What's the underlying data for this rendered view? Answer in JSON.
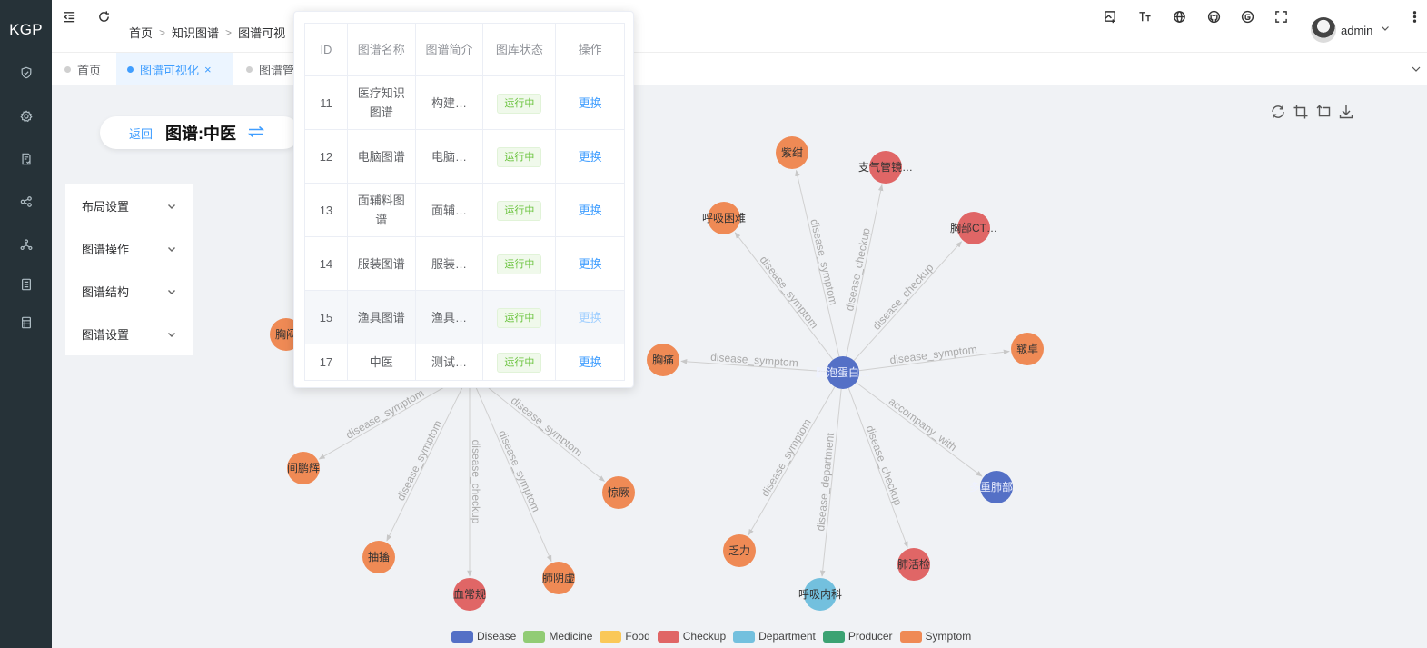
{
  "sidebar": {
    "logo": "KGP",
    "items": [
      {
        "icon": "shield-icon"
      },
      {
        "icon": "gear-icon"
      },
      {
        "icon": "document-check-icon"
      },
      {
        "icon": "share-nodes-icon"
      },
      {
        "icon": "graph-network-icon"
      },
      {
        "icon": "file-list-icon"
      },
      {
        "icon": "table-icon"
      }
    ]
  },
  "header": {
    "breadcrumb": [
      "首页",
      "知识图谱",
      "图谱可视"
    ],
    "user": "admin"
  },
  "tabs": [
    {
      "label": "首页",
      "active": false
    },
    {
      "label": "图谱可视化",
      "active": true,
      "closable": true
    },
    {
      "label": "图谱管",
      "active": false
    }
  ],
  "graph_bar": {
    "back": "返回",
    "title": "图谱:中医"
  },
  "settings_menu": [
    "布局设置",
    "图谱操作",
    "图谱结构",
    "图谱设置"
  ],
  "popover_table": {
    "columns": [
      "ID",
      "图谱名称",
      "图谱简介",
      "图库状态",
      "操作"
    ],
    "rows": [
      {
        "id": "11",
        "name": "医疗知识图谱",
        "desc": "构建…",
        "status": "运行中",
        "action": "更换"
      },
      {
        "id": "12",
        "name": "电脑图谱",
        "desc": "电脑…",
        "status": "运行中",
        "action": "更换"
      },
      {
        "id": "13",
        "name": "面辅料图谱",
        "desc": "面辅…",
        "status": "运行中",
        "action": "更换"
      },
      {
        "id": "14",
        "name": "服装图谱",
        "desc": "服装…",
        "status": "运行中",
        "action": "更换"
      },
      {
        "id": "15",
        "name": "渔具图谱",
        "desc": "渔具…",
        "status": "运行中",
        "action": "更换"
      },
      {
        "id": "17",
        "name": "中医",
        "desc": "测试…",
        "status": "运行中",
        "action": "更换"
      }
    ]
  },
  "graph": {
    "nodes": [
      {
        "id": "lung",
        "label": "肺泡蛋白…",
        "type": "Disease"
      },
      {
        "id": "zigan",
        "label": "紫绀",
        "type": "Symptom"
      },
      {
        "id": "zhiqi",
        "label": "支气管镜…",
        "type": "Checkup"
      },
      {
        "id": "huxi",
        "label": "呼吸困难",
        "type": "Symptom"
      },
      {
        "id": "xiongbu",
        "label": "胸部CT…",
        "type": "Checkup"
      },
      {
        "id": "xiongtong",
        "label": "胸痛",
        "type": "Symptom"
      },
      {
        "id": "zhenzhuo",
        "label": "皲卓",
        "type": "Symptom"
      },
      {
        "id": "fali",
        "label": "乏力",
        "type": "Symptom"
      },
      {
        "id": "huxineike",
        "label": "呼吸内科",
        "type": "Department"
      },
      {
        "id": "feihuojian",
        "label": "肺活检",
        "type": "Checkup"
      },
      {
        "id": "duochong",
        "label": "多重肺部…",
        "type": "Disease"
      },
      {
        "id": "tcm",
        "label": "",
        "type": "Disease"
      },
      {
        "id": "xiongmen",
        "label": "胸闷",
        "type": "Symptom"
      },
      {
        "id": "jianpeng",
        "label": "间鹏辉",
        "type": "Symptom"
      },
      {
        "id": "chouchu",
        "label": "抽搐",
        "type": "Symptom"
      },
      {
        "id": "xuechang",
        "label": "血常规",
        "type": "Checkup"
      },
      {
        "id": "feiyin",
        "label": "肺阴虚",
        "type": "Symptom"
      },
      {
        "id": "jingjue",
        "label": "惊厥",
        "type": "Symptom"
      }
    ],
    "edges": [
      {
        "from": "lung",
        "to": "zigan",
        "label": "disease_symptom"
      },
      {
        "from": "lung",
        "to": "zhiqi",
        "label": "disease_checkup"
      },
      {
        "from": "lung",
        "to": "huxi",
        "label": "disease_symptom"
      },
      {
        "from": "lung",
        "to": "xiongbu",
        "label": "disease_checkup"
      },
      {
        "from": "lung",
        "to": "xiongtong",
        "label": "disease_symptom"
      },
      {
        "from": "lung",
        "to": "zhenzhuo",
        "label": "disease_symptom"
      },
      {
        "from": "lung",
        "to": "fali",
        "label": "disease_symptom"
      },
      {
        "from": "lung",
        "to": "huxineike",
        "label": "disease_department"
      },
      {
        "from": "lung",
        "to": "feihuojian",
        "label": "disease_checkup"
      },
      {
        "from": "lung",
        "to": "duochong",
        "label": "accompany_with"
      },
      {
        "from": "tcm",
        "to": "jianpeng",
        "label": "disease_symptom"
      },
      {
        "from": "tcm",
        "to": "chouchu",
        "label": "disease_symptom"
      },
      {
        "from": "tcm",
        "to": "xuechang",
        "label": "disease_checkup"
      },
      {
        "from": "tcm",
        "to": "feiyin",
        "label": "disease_symptom"
      },
      {
        "from": "tcm",
        "to": "jingjue",
        "label": "disease_symptom"
      }
    ]
  },
  "legend": [
    {
      "label": "Disease",
      "color": "#5470c6"
    },
    {
      "label": "Medicine",
      "color": "#91cc75"
    },
    {
      "label": "Food",
      "color": "#fac858"
    },
    {
      "label": "Checkup",
      "color": "#e06666"
    },
    {
      "label": "Department",
      "color": "#73c0de"
    },
    {
      "label": "Producer",
      "color": "#3ba272"
    },
    {
      "label": "Symptom",
      "color": "#ef8a55"
    }
  ]
}
